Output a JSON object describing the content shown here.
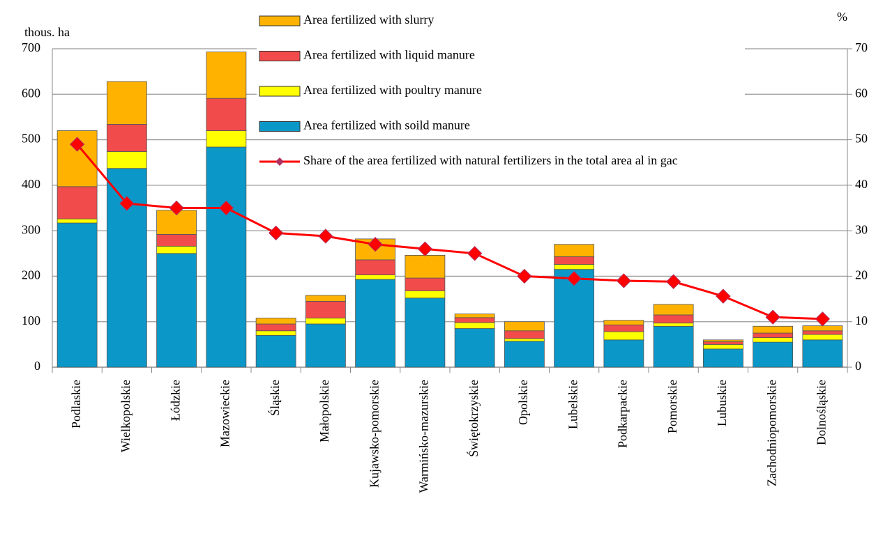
{
  "chart_data": {
    "type": "bar",
    "stacked": true,
    "y_label": "thous. ha",
    "y2_label": "%",
    "categories": [
      "Podlaskie",
      "Wielkopolskie",
      "Łódzkie",
      "Mazowieckie",
      "Śląskie",
      "Małopolskie",
      "Kujawsko-pomorskie",
      "Warmińsko-mazurskie",
      "Świętokrzyskie",
      "Opolskie",
      "Lubelskie",
      "Podkarpackie",
      "Pomorskie",
      "Lubuskie",
      "Zachodniopomorskie",
      "Dolnośląskie"
    ],
    "series": [
      {
        "name": "Area fertilized with soild manure",
        "type": "bar",
        "color": "#0b98c9",
        "values": [
          317,
          437,
          250,
          484,
          70,
          95,
          193,
          152,
          85,
          57,
          215,
          60,
          90,
          40,
          55,
          60
        ]
      },
      {
        "name": "Area fertilized with poultry manure",
        "type": "bar",
        "color": "#ffff00",
        "values": [
          9,
          37,
          16,
          36,
          10,
          13,
          10,
          16,
          13,
          6,
          11,
          18,
          7,
          10,
          10,
          12
        ]
      },
      {
        "name": "Area fertilized with liquid manure",
        "type": "bar",
        "color": "#f24b4b",
        "values": [
          71,
          60,
          26,
          71,
          15,
          37,
          33,
          28,
          11,
          17,
          17,
          15,
          18,
          6,
          10,
          8
        ]
      },
      {
        "name": "Area fertilized with slurry",
        "type": "bar",
        "color": "#ffb300",
        "values": [
          123,
          94,
          53,
          102,
          13,
          13,
          46,
          50,
          8,
          20,
          27,
          10,
          23,
          4,
          15,
          11
        ]
      },
      {
        "name": "Share of the area fertilized with natural fertilizers in the total area al in gac",
        "type": "line",
        "axis": "y2",
        "color": "#ff0000",
        "values": [
          49,
          36,
          35,
          35,
          29.5,
          28.8,
          27,
          26,
          25,
          20,
          19.5,
          19,
          18.8,
          15.6,
          11,
          10.6
        ]
      }
    ],
    "ylim": [
      0,
      700
    ],
    "yticks": [
      0,
      100,
      200,
      300,
      400,
      500,
      600,
      700
    ],
    "y2lim": [
      0,
      70
    ],
    "y2ticks": [
      0,
      10,
      20,
      30,
      40,
      50,
      60,
      70
    ],
    "grid": true
  }
}
